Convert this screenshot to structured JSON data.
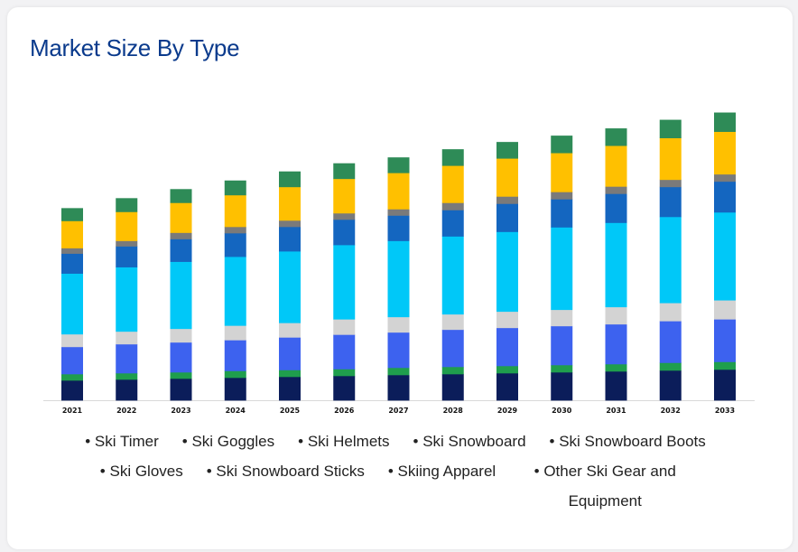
{
  "title": "Market Size By Type",
  "chart_data": {
    "type": "bar",
    "stacked": true,
    "categories": [
      "2021",
      "2022",
      "2023",
      "2024",
      "2025",
      "2026",
      "2027",
      "2028",
      "2029",
      "2030",
      "2031",
      "2032",
      "2033"
    ],
    "series": [
      {
        "name": "Ski Timer",
        "color": "#0b1d5a",
        "values": [
          22,
          23,
          24,
          25,
          26,
          27,
          28,
          29,
          30,
          31,
          32,
          33,
          34
        ]
      },
      {
        "name": "Ski Goggles",
        "color": "#1f9e4d",
        "values": [
          7,
          7,
          7,
          7.5,
          7.5,
          7.5,
          8,
          8,
          8,
          8,
          8,
          8.5,
          8.5
        ]
      },
      {
        "name": "Ski Helmets",
        "color": "#3d62ef",
        "values": [
          30,
          32,
          33,
          34,
          36,
          38,
          39,
          41,
          42,
          43,
          44,
          46,
          47
        ]
      },
      {
        "name": "Ski Snowboard",
        "color": "#d3d3d3",
        "values": [
          14,
          14,
          15,
          16,
          16,
          17,
          17,
          17,
          18,
          18,
          19,
          20,
          21
        ]
      },
      {
        "name": "Ski Snowboard Boots",
        "color": "#00c8f8",
        "values": [
          67,
          71,
          74,
          76,
          79,
          82,
          84,
          86,
          88,
          91,
          93,
          95,
          97
        ]
      },
      {
        "name": "Ski Gloves",
        "color": "#1466c0",
        "values": [
          22,
          23,
          25,
          26,
          27,
          28,
          28,
          29,
          31,
          31,
          32,
          33,
          34
        ]
      },
      {
        "name": "Ski Snowboard Sticks",
        "color": "#7a7a7a",
        "values": [
          6,
          6,
          7,
          7,
          7,
          7,
          7,
          8,
          8,
          8,
          8,
          8,
          8
        ]
      },
      {
        "name": "Skiing Apparel",
        "color": "#ffc000",
        "values": [
          30,
          32,
          33,
          35,
          37,
          38,
          40,
          41,
          42,
          43,
          45,
          46,
          47
        ]
      },
      {
        "name": "Other Ski Gear and Equipment",
        "color": "#2e8b57",
        "values": [
          14,
          15,
          15,
          16,
          17,
          17,
          17,
          18,
          18,
          19,
          19,
          20,
          21
        ]
      }
    ],
    "ylim": [
      0,
      330
    ],
    "grid": false,
    "legend_position": "bottom"
  }
}
